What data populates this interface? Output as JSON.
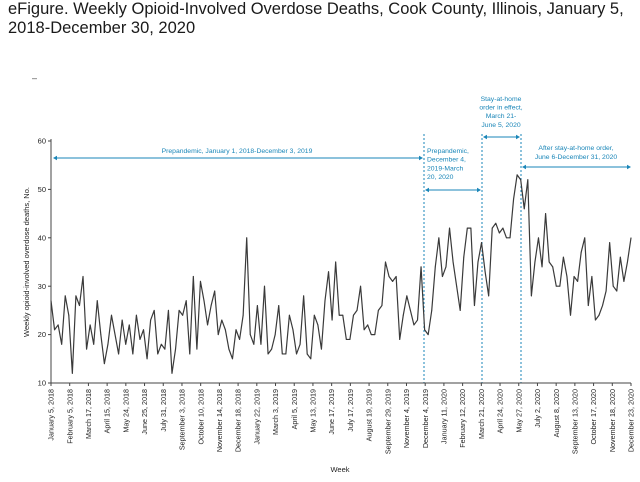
{
  "page": {
    "title": "eFigure. Weekly Opioid-Involved Overdose Deaths, Cook County, Illinois, January 5, 2018-December 30, 2020",
    "stray_mark": "–"
  },
  "colors": {
    "line": "#3a3a3a",
    "annotation": "#1a86b8",
    "axis": "#444444",
    "text": "#222222"
  },
  "chart_data": {
    "type": "line",
    "title": "",
    "xlabel": "Week",
    "ylabel": "Weekly opioid-involved overdose deaths, No.",
    "ylim": [
      10,
      60
    ],
    "yticks": [
      10,
      20,
      30,
      40,
      50,
      60
    ],
    "grid": false,
    "x_tick_labels": [
      "January 5, 2018",
      "February 5, 2018",
      "March 17, 2018",
      "April 15, 2018",
      "May 24, 2018",
      "June 25, 2018",
      "July 31, 2018",
      "September 3, 2018",
      "October 10, 2018",
      "November 14, 2018",
      "December 18, 2018",
      "January 22, 2019",
      "March 3, 2019",
      "April 5, 2019",
      "May 13, 2019",
      "June 17, 2019",
      "July 17, 2019",
      "August 19, 2019",
      "September 29, 2019",
      "November 4, 2019",
      "December 4, 2019",
      "January 11, 2020",
      "February 12, 2020",
      "March 21, 2020",
      "April 24, 2020",
      "May 27, 2020",
      "July 2, 2020",
      "August 8, 2020",
      "September 13, 2020",
      "October 17, 2020",
      "November 18, 2020",
      "December 23, 2020"
    ],
    "series": [
      {
        "values": [
          27,
          21,
          22,
          18,
          28,
          24,
          12,
          28,
          26,
          32,
          17,
          22,
          18,
          27,
          20,
          14,
          18,
          24,
          20,
          16,
          23,
          18,
          22,
          16,
          24,
          19,
          21,
          15,
          23,
          25,
          16,
          18,
          17,
          25,
          12,
          17,
          25,
          24,
          27,
          16,
          32,
          17,
          31,
          27,
          22,
          26,
          29,
          20,
          23,
          21,
          17,
          15,
          21,
          19,
          24,
          40,
          20,
          18,
          26,
          18,
          30,
          16,
          17,
          20,
          26,
          16,
          16,
          24,
          21,
          16,
          18,
          28,
          16,
          15,
          24,
          22,
          17,
          27,
          33,
          23,
          35,
          24,
          24,
          19,
          19,
          24,
          25,
          30,
          21,
          22,
          20,
          20,
          25,
          26,
          35,
          32,
          31,
          32,
          19,
          24,
          28,
          25,
          22,
          23,
          34,
          21,
          20,
          25,
          34,
          40,
          32,
          34,
          42,
          35,
          30,
          25,
          36,
          42,
          42,
          26,
          35,
          39,
          33,
          28,
          42,
          43,
          41,
          42,
          40,
          40,
          48,
          53,
          52,
          46,
          52,
          28,
          35,
          40,
          34,
          45,
          35,
          34,
          30,
          30,
          36,
          32,
          24,
          32,
          31,
          37,
          40,
          26,
          32,
          23,
          24,
          26,
          29,
          39,
          30,
          29,
          36,
          31,
          35,
          40
        ]
      }
    ],
    "periods": [
      {
        "label_lines": [
          "Prepandemic, January 1, 2018-December 3, 2019"
        ]
      },
      {
        "label_lines": [
          "Prepandemic,",
          "December 4,",
          "2019-March",
          "20, 2020"
        ]
      },
      {
        "label_lines": [
          "Stay-at-home",
          "order in effect,",
          "March 21-",
          "June 5, 2020"
        ]
      },
      {
        "label_lines": [
          "After stay-at-home order,",
          "June 6-December 31, 2020"
        ]
      }
    ]
  }
}
